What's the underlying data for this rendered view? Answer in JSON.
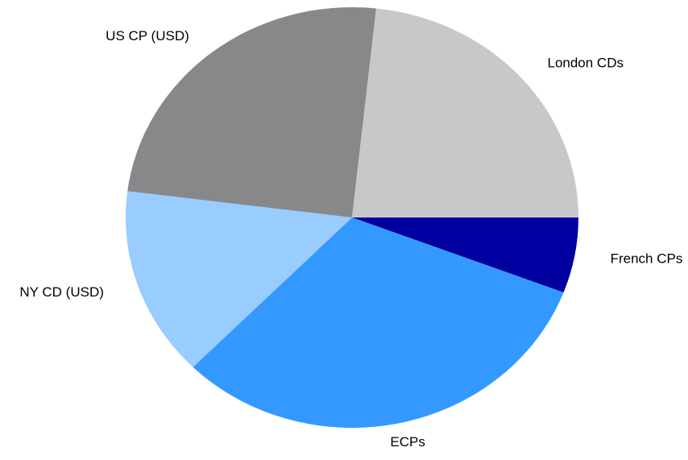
{
  "chart_data": {
    "type": "pie",
    "categories": [
      "French CPs",
      "ECPs",
      "NY CD (USD)",
      "US CP (USD)",
      "London CDs"
    ],
    "values": [
      5.8,
      31.6,
      14.6,
      24.7,
      23.3
    ],
    "colors": [
      "#0000a0",
      "#3399ff",
      "#99ccff",
      "#88888a",
      "#c8c7c9"
    ]
  }
}
